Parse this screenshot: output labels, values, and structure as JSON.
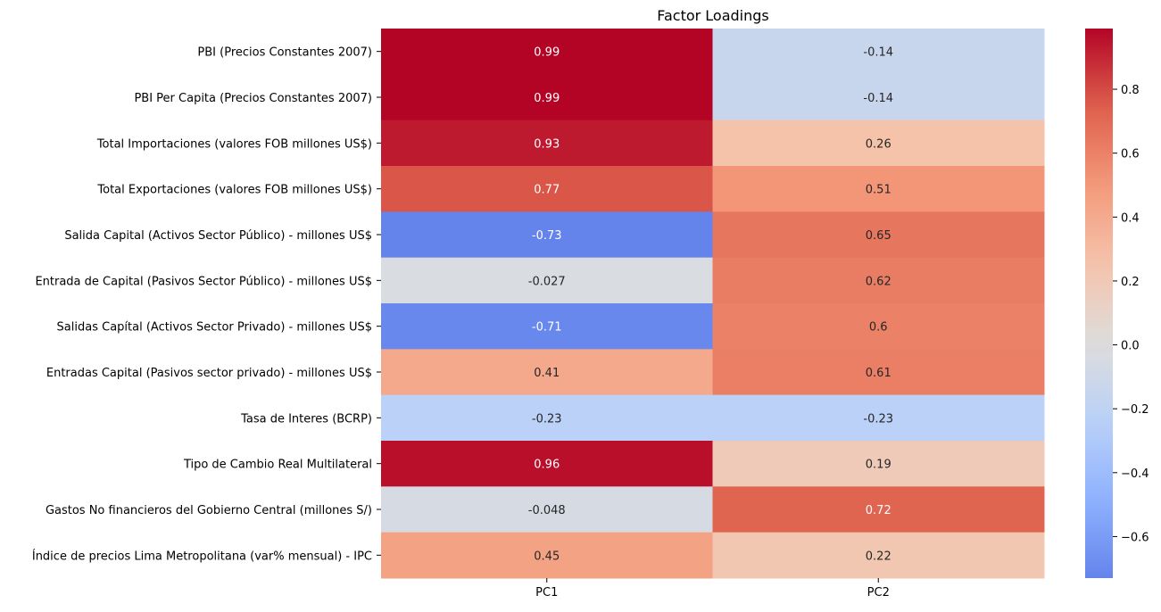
{
  "chart_data": {
    "type": "heatmap",
    "title": "Factor Loadings",
    "xlabel": "",
    "ylabel": "",
    "columns": [
      "PC1",
      "PC2"
    ],
    "rows": [
      "PBI (Precios Constantes 2007)",
      "PBI Per Capita (Precios Constantes 2007)",
      "Total Importaciones (valores FOB millones US$)",
      "Total Exportaciones (valores FOB millones US$)",
      "Salida Capital (Activos Sector Público) - millones US$",
      "Entrada de Capital (Pasivos Sector Público) - millones US$",
      "Salidas Capítal (Activos Sector Privado) - millones US$",
      "Entradas Capital (Pasivos sector privado) - millones US$",
      "Tasa de Interes (BCRP)",
      "Tipo de Cambio Real Multilateral",
      "Gastos No financieros del Gobierno Central (millones S/)",
      "Índice de precios Lima Metropolitana (var% mensual) - IPC"
    ],
    "values": [
      [
        0.99,
        -0.14
      ],
      [
        0.99,
        -0.14
      ],
      [
        0.93,
        0.26
      ],
      [
        0.77,
        0.51
      ],
      [
        -0.73,
        0.65
      ],
      [
        -0.027,
        0.62
      ],
      [
        -0.71,
        0.6
      ],
      [
        0.41,
        0.61
      ],
      [
        -0.23,
        -0.23
      ],
      [
        0.96,
        0.19
      ],
      [
        -0.048,
        0.72
      ],
      [
        0.45,
        0.22
      ]
    ],
    "annotations": [
      [
        "0.99",
        "-0.14"
      ],
      [
        "0.99",
        "-0.14"
      ],
      [
        "0.93",
        "0.26"
      ],
      [
        "0.77",
        "0.51"
      ],
      [
        "-0.73",
        "0.65"
      ],
      [
        "-0.027",
        "0.62"
      ],
      [
        "-0.71",
        "0.6"
      ],
      [
        "0.41",
        "0.61"
      ],
      [
        "-0.23",
        "-0.23"
      ],
      [
        "0.96",
        "0.19"
      ],
      [
        "-0.048",
        "0.72"
      ],
      [
        "0.45",
        "0.22"
      ]
    ],
    "colormap": "coolwarm",
    "color_range": [
      -0.73,
      0.99
    ],
    "colorbar_ticks": [
      "0.8",
      "0.6",
      "0.4",
      "0.2",
      "0.0",
      "−0.2",
      "−0.4",
      "−0.6"
    ],
    "colorbar_tick_values": [
      0.8,
      0.6,
      0.4,
      0.2,
      0.0,
      -0.2,
      -0.4,
      -0.6
    ]
  }
}
